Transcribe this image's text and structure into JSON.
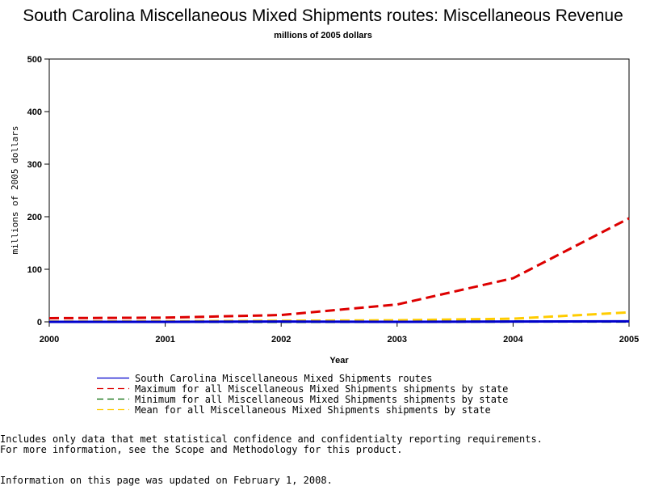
{
  "chart_data": {
    "type": "line",
    "title": "South Carolina Miscellaneous Mixed Shipments routes: Miscellaneous Revenue",
    "subtitle": "millions of 2005 dollars",
    "xlabel": "Year",
    "ylabel": "millions of 2005 dollars",
    "xlim": [
      2000,
      2005
    ],
    "ylim": [
      0,
      500
    ],
    "x_ticks": [
      "2000",
      "2001",
      "2002",
      "2003",
      "2004",
      "2005"
    ],
    "y_ticks": [
      "0",
      "100",
      "200",
      "300",
      "400",
      "500"
    ],
    "grid": false,
    "legend_position": "bottom",
    "x": [
      2000,
      2001,
      2002,
      2003,
      2004,
      2005
    ],
    "series": [
      {
        "name": "South Carolina Miscellaneous Mixed Shipments routes",
        "color": "#0000cc",
        "dash": "solid",
        "values": [
          0,
          0,
          0.5,
          0,
          0.5,
          1
        ]
      },
      {
        "name": "Maximum for all Miscellaneous Mixed Shipments shipments by state",
        "color": "#dd0000",
        "dash": "dashed",
        "values": [
          7,
          8,
          13,
          33,
          83,
          197
        ]
      },
      {
        "name": "Minimum for all Miscellaneous Mixed Shipments shipments by state",
        "color": "#006600",
        "dash": "dashed",
        "values": [
          0,
          0,
          0,
          0,
          0.5,
          0.5
        ]
      },
      {
        "name": "Mean for all Miscellaneous Mixed Shipments shipments by state",
        "color": "#ffcc00",
        "dash": "dashed",
        "values": [
          0.5,
          1,
          2,
          3,
          6,
          18
        ]
      }
    ]
  },
  "notes": {
    "line1": "Includes only data that met statistical confidence and confidentialty reporting requirements.",
    "line2": "For more information, see the Scope and Methodology for this product.",
    "updated": "Information on this page was updated on February 1, 2008."
  }
}
